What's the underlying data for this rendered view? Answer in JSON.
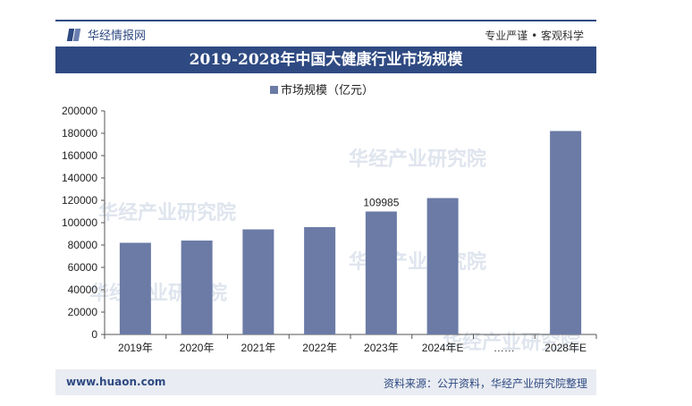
{
  "header": {
    "brand": "华经情报网",
    "slogan": "专业严谨 • 客观科学"
  },
  "footer": {
    "site": "www.huaon.com",
    "source": "资料来源：公开资料，华经产业研究院整理"
  },
  "watermark": "华经产业研究院",
  "colors": {
    "bar": "#6b7ba6",
    "header": "#2f4a82",
    "footer_bg": "#e9ecf2"
  },
  "chart_data": {
    "type": "bar",
    "title": "2019-2028年中国大健康行业市场规模",
    "legend": "市场规模（亿元）",
    "legend_position": "top-center",
    "categories": [
      "2019年",
      "2020年",
      "2021年",
      "2022年",
      "2023年",
      "2024年E",
      "……",
      "2028年E"
    ],
    "values": [
      82000,
      84000,
      94000,
      96000,
      109985,
      122000,
      null,
      182000
    ],
    "data_labels": {
      "2023年": "109985"
    },
    "ylim": [
      0,
      200000
    ],
    "yticks": [
      0,
      20000,
      40000,
      60000,
      80000,
      100000,
      120000,
      140000,
      160000,
      180000,
      200000
    ],
    "grid": false
  }
}
